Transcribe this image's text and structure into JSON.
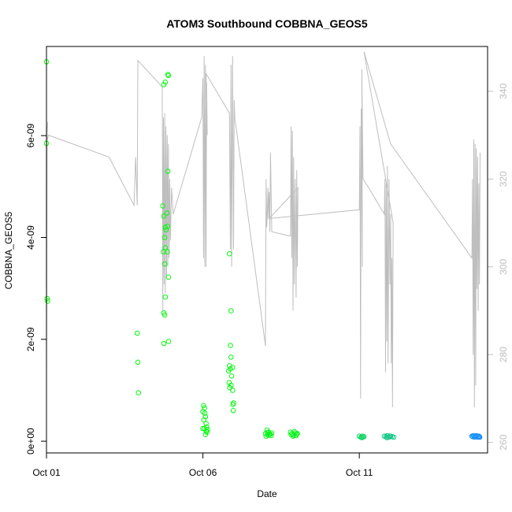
{
  "chart_data": {
    "type": "scatter",
    "title": "ATOM3 Southbound COBBNA_GEOS5",
    "xlabel": "Date",
    "ylabel": "COBBNA_GEOS5",
    "x_ticks": [
      {
        "day": 1,
        "label": "Oct 01"
      },
      {
        "day": 6,
        "label": "Oct 06"
      },
      {
        "day": 11,
        "label": "Oct 11"
      }
    ],
    "y_ticks": [
      {
        "value": 0,
        "label": "0e+00"
      },
      {
        "value": 2e-09,
        "label": "2e-09"
      },
      {
        "value": 4e-09,
        "label": "4e-09"
      },
      {
        "value": 6e-09,
        "label": "6e-09"
      }
    ],
    "y2_ticks": [
      {
        "value": 260,
        "label": "260"
      },
      {
        "value": 280,
        "label": "280"
      },
      {
        "value": 300,
        "label": "300"
      },
      {
        "value": 320,
        "label": "320"
      },
      {
        "value": 340,
        "label": "340"
      }
    ],
    "xlim": [
      1,
      15.1
    ],
    "ylim": [
      -2.3e-10,
      7.75e-09
    ],
    "y2lim": [
      257.6,
      350.2
    ],
    "colors": {
      "secondary_line": "#bebebe",
      "gradient_start": "#00ff00",
      "gradient_end": "#1e90ff"
    },
    "scatter_points": [
      [
        1.0,
        7.45e-09
      ],
      [
        1.0,
        5.85e-09
      ],
      [
        1.02,
        2.8e-09
      ],
      [
        1.04,
        2.75e-09
      ],
      [
        3.9,
        2.12e-09
      ],
      [
        3.92,
        1.55e-09
      ],
      [
        3.94,
        9.5e-10
      ],
      [
        4.75,
        7e-09
      ],
      [
        4.8,
        7.05e-09
      ],
      [
        4.88,
        7.2e-09
      ],
      [
        4.9,
        7.18e-09
      ],
      [
        4.72,
        4.62e-09
      ],
      [
        4.75,
        4.42e-09
      ],
      [
        4.85,
        4.48e-09
      ],
      [
        4.8,
        4.2e-09
      ],
      [
        4.82,
        4.15e-09
      ],
      [
        4.87,
        4.22e-09
      ],
      [
        4.78,
        4e-09
      ],
      [
        4.8,
        3.8e-09
      ],
      [
        4.74,
        3.72e-09
      ],
      [
        4.86,
        3.72e-09
      ],
      [
        4.78,
        3.48e-09
      ],
      [
        4.9,
        3.22e-09
      ],
      [
        4.8,
        2.83e-09
      ],
      [
        4.75,
        2.52e-09
      ],
      [
        4.78,
        2.48e-09
      ],
      [
        4.88,
        5.3e-09
      ],
      [
        4.75,
        1.92e-09
      ],
      [
        4.9,
        1.96e-09
      ],
      [
        6.02,
        7e-10
      ],
      [
        6.05,
        6.5e-10
      ],
      [
        6.0,
        5.8e-10
      ],
      [
        6.06,
        5.5e-10
      ],
      [
        6.08,
        4.8e-10
      ],
      [
        6.03,
        4.2e-10
      ],
      [
        6.1,
        3.5e-10
      ],
      [
        6.12,
        2.8e-10
      ],
      [
        6.05,
        2.5e-10
      ],
      [
        6.15,
        2.3e-10
      ],
      [
        6.1,
        2e-10
      ],
      [
        6.0,
        2.5e-10
      ],
      [
        6.08,
        1.3e-10
      ],
      [
        6.13,
        1.8e-10
      ],
      [
        6.85,
        3.68e-09
      ],
      [
        6.9,
        2.56e-09
      ],
      [
        6.88,
        1.88e-09
      ],
      [
        6.9,
        1.65e-09
      ],
      [
        6.85,
        1.48e-09
      ],
      [
        6.88,
        1.42e-09
      ],
      [
        6.95,
        1.45e-09
      ],
      [
        6.82,
        1.38e-09
      ],
      [
        6.92,
        1.28e-09
      ],
      [
        6.84,
        1.15e-09
      ],
      [
        6.9,
        1.1e-09
      ],
      [
        6.86,
        1.05e-09
      ],
      [
        6.95,
        1e-09
      ],
      [
        6.98,
        7.5e-10
      ],
      [
        6.96,
        7.2e-10
      ],
      [
        6.97,
        6e-10
      ],
      [
        8.0,
        1.5e-10
      ],
      [
        8.05,
        2.2e-10
      ],
      [
        8.1,
        1.8e-10
      ],
      [
        8.15,
        1.4e-10
      ],
      [
        8.08,
        1.2e-10
      ],
      [
        8.02,
        1e-10
      ],
      [
        8.12,
        1.3e-10
      ],
      [
        8.2,
        1.6e-10
      ],
      [
        8.18,
        1.1e-10
      ],
      [
        8.06,
        1.7e-10
      ],
      [
        8.8,
        1.8e-10
      ],
      [
        8.85,
        1.5e-10
      ],
      [
        8.9,
        1.2e-10
      ],
      [
        8.95,
        1.6e-10
      ],
      [
        8.88,
        1e-10
      ],
      [
        9.0,
        1.4e-10
      ],
      [
        8.82,
        1.3e-10
      ],
      [
        8.92,
        1.9e-10
      ],
      [
        8.98,
        1.1e-10
      ],
      [
        9.02,
        1.5e-10
      ],
      [
        11.0,
        1e-10
      ],
      [
        11.05,
        8e-11
      ],
      [
        11.1,
        1e-10
      ],
      [
        11.15,
        9e-11
      ],
      [
        11.08,
        7e-11
      ],
      [
        11.12,
        8e-11
      ],
      [
        11.8,
        1e-10
      ],
      [
        11.85,
        9e-11
      ],
      [
        11.9,
        1.1e-10
      ],
      [
        11.95,
        8e-11
      ],
      [
        12.0,
        1e-10
      ],
      [
        12.05,
        9e-11
      ],
      [
        12.1,
        8e-11
      ],
      [
        11.88,
        7e-11
      ],
      [
        11.98,
        1e-10
      ],
      [
        14.6,
        1e-10
      ],
      [
        14.62,
        9e-11
      ],
      [
        14.65,
        1.1e-10
      ],
      [
        14.68,
        8e-11
      ],
      [
        14.7,
        1e-10
      ],
      [
        14.72,
        9e-11
      ],
      [
        14.75,
        1e-10
      ],
      [
        14.78,
        8e-11
      ],
      [
        14.8,
        9e-11
      ],
      [
        14.82,
        1e-10
      ],
      [
        14.85,
        8e-11
      ],
      [
        14.66,
        1e-10
      ],
      [
        14.74,
        1.1e-10
      ],
      [
        14.84,
        9e-11
      ]
    ],
    "secondary_line": [
      [
        1.0,
        276
      ],
      [
        1.02,
        331
      ],
      [
        1.04,
        333
      ],
      [
        1.0,
        328
      ],
      [
        1.06,
        330
      ],
      [
        3.0,
        325
      ],
      [
        3.8,
        314
      ],
      [
        3.85,
        325
      ],
      [
        3.9,
        314
      ],
      [
        3.92,
        347
      ],
      [
        4.7,
        341
      ],
      [
        4.72,
        290
      ],
      [
        4.74,
        334
      ],
      [
        4.76,
        296
      ],
      [
        4.78,
        335
      ],
      [
        4.8,
        294
      ],
      [
        4.82,
        332
      ],
      [
        4.84,
        298
      ],
      [
        4.86,
        330
      ],
      [
        4.88,
        300
      ],
      [
        4.9,
        328
      ],
      [
        4.92,
        302
      ],
      [
        4.94,
        320
      ],
      [
        4.96,
        306
      ],
      [
        5.0,
        318
      ],
      [
        5.05,
        312
      ],
      [
        5.96,
        334
      ],
      [
        6.0,
        343
      ],
      [
        6.02,
        302
      ],
      [
        6.04,
        348
      ],
      [
        6.06,
        300
      ],
      [
        6.08,
        346
      ],
      [
        6.1,
        300
      ],
      [
        6.12,
        342
      ],
      [
        6.14,
        330
      ],
      [
        6.1,
        344
      ],
      [
        6.85,
        335
      ],
      [
        6.88,
        304
      ],
      [
        6.9,
        346
      ],
      [
        6.92,
        300
      ],
      [
        6.95,
        348
      ],
      [
        6.98,
        304
      ],
      [
        7.0,
        338
      ],
      [
        7.02,
        334
      ],
      [
        8.0,
        282
      ],
      [
        8.02,
        320
      ],
      [
        8.04,
        309
      ],
      [
        8.06,
        312
      ],
      [
        8.08,
        318
      ],
      [
        8.1,
        311
      ],
      [
        8.12,
        317
      ],
      [
        8.14,
        308
      ],
      [
        8.16,
        326
      ],
      [
        8.2,
        308
      ],
      [
        8.8,
        307
      ],
      [
        8.82,
        332
      ],
      [
        8.84,
        302
      ],
      [
        8.86,
        331
      ],
      [
        8.88,
        290
      ],
      [
        8.9,
        325
      ],
      [
        8.92,
        296
      ],
      [
        8.95,
        320
      ],
      [
        8.98,
        293
      ],
      [
        9.0,
        322
      ],
      [
        9.02,
        300
      ],
      [
        9.04,
        318
      ],
      [
        8.12,
        311
      ],
      [
        11.0,
        313
      ],
      [
        11.02,
        332
      ],
      [
        11.04,
        270
      ],
      [
        11.06,
        336
      ],
      [
        11.1,
        300
      ],
      [
        11.08,
        345
      ],
      [
        11.12,
        320
      ],
      [
        11.3,
        318
      ],
      [
        11.8,
        312
      ],
      [
        11.82,
        320
      ],
      [
        11.84,
        276
      ],
      [
        11.86,
        319
      ],
      [
        11.88,
        283
      ],
      [
        11.9,
        323
      ],
      [
        11.92,
        278
      ],
      [
        11.95,
        320
      ],
      [
        11.98,
        296
      ],
      [
        12.0,
        312
      ],
      [
        12.02,
        278
      ],
      [
        12.04,
        302
      ],
      [
        12.06,
        268
      ],
      [
        12.08,
        310
      ],
      [
        11.15,
        349
      ],
      [
        12.0,
        328
      ],
      [
        14.6,
        302
      ],
      [
        14.62,
        320
      ],
      [
        14.64,
        280
      ],
      [
        14.66,
        329
      ],
      [
        14.68,
        268
      ],
      [
        14.7,
        328
      ],
      [
        14.72,
        273
      ],
      [
        14.74,
        327
      ],
      [
        14.76,
        295
      ],
      [
        14.78,
        325
      ],
      [
        14.8,
        290
      ],
      [
        14.82,
        319
      ],
      [
        14.84,
        296
      ],
      [
        14.86,
        326
      ]
    ]
  }
}
